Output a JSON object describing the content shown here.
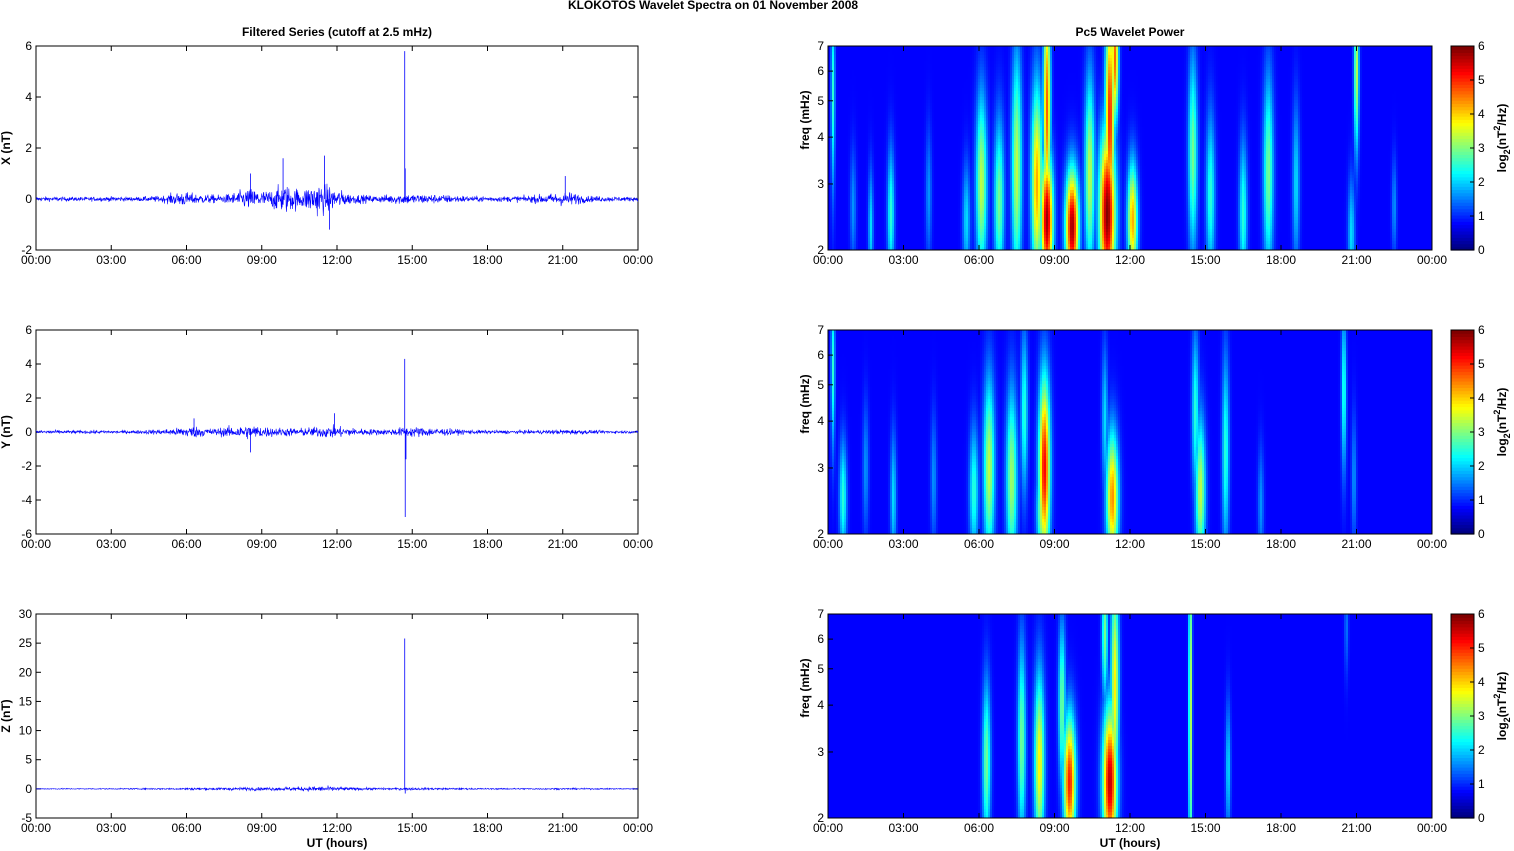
{
  "figure": {
    "title": "KLOKOTOS Wavelet Spectra on 01 November  2008",
    "left_title": "Filtered Series (cutoff at 2.5 mHz)",
    "right_title": "Pc5 Wavelet Power",
    "xlabel": "UT (hours)"
  },
  "chart_data": [
    {
      "type": "line",
      "title": "Filtered Series (cutoff at 2.5 mHz)",
      "xlabel": "",
      "ylabel": "X (nT)",
      "xticks": [
        "00:00",
        "03:00",
        "06:00",
        "09:00",
        "12:00",
        "15:00",
        "18:00",
        "21:00",
        "00:00"
      ],
      "xlim": [
        0,
        24
      ],
      "ylim": [
        -2,
        6
      ],
      "yticks": [
        -2,
        0,
        2,
        4,
        6
      ],
      "color": "#0000ff",
      "activity": [
        [
          0,
          0.09
        ],
        [
          1,
          0.08
        ],
        [
          2,
          0.08
        ],
        [
          3,
          0.09
        ],
        [
          4,
          0.08
        ],
        [
          5,
          0.12
        ],
        [
          5.8,
          0.28
        ],
        [
          6.5,
          0.18
        ],
        [
          7.5,
          0.15
        ],
        [
          8.5,
          0.4
        ],
        [
          9.2,
          0.3
        ],
        [
          9.9,
          0.55
        ],
        [
          10.6,
          0.35
        ],
        [
          11.2,
          0.65
        ],
        [
          11.8,
          0.45
        ],
        [
          12.5,
          0.2
        ],
        [
          13.5,
          0.12
        ],
        [
          14.5,
          0.2
        ],
        [
          15.5,
          0.18
        ],
        [
          16.5,
          0.15
        ],
        [
          17.5,
          0.1
        ],
        [
          18.5,
          0.1
        ],
        [
          19.5,
          0.12
        ],
        [
          20.5,
          0.2
        ],
        [
          21.2,
          0.28
        ],
        [
          22,
          0.12
        ],
        [
          23,
          0.09
        ],
        [
          24,
          0.08
        ]
      ],
      "spikes": [
        {
          "x": 14.7,
          "y": 5.8
        },
        {
          "x": 14.72,
          "y": 1.2
        },
        {
          "x": 9.85,
          "y": 1.6
        },
        {
          "x": 8.55,
          "y": 1.0
        },
        {
          "x": 11.5,
          "y": 1.7
        },
        {
          "x": 11.7,
          "y": -1.2
        },
        {
          "x": 21.1,
          "y": 0.9
        }
      ]
    },
    {
      "type": "line",
      "title": "",
      "xlabel": "",
      "ylabel": "Y (nT)",
      "xticks": [
        "00:00",
        "03:00",
        "06:00",
        "09:00",
        "12:00",
        "15:00",
        "18:00",
        "21:00",
        "00:00"
      ],
      "xlim": [
        0,
        24
      ],
      "ylim": [
        -6,
        6
      ],
      "yticks": [
        -6,
        -4,
        -2,
        0,
        2,
        4,
        6
      ],
      "color": "#0000ff",
      "activity": [
        [
          0,
          0.1
        ],
        [
          2,
          0.09
        ],
        [
          4,
          0.09
        ],
        [
          5.5,
          0.2
        ],
        [
          6.2,
          0.35
        ],
        [
          7,
          0.2
        ],
        [
          8.5,
          0.4
        ],
        [
          9.5,
          0.25
        ],
        [
          10.5,
          0.22
        ],
        [
          11.8,
          0.35
        ],
        [
          12.8,
          0.2
        ],
        [
          14,
          0.15
        ],
        [
          14.8,
          0.3
        ],
        [
          15.8,
          0.25
        ],
        [
          16.8,
          0.15
        ],
        [
          18,
          0.1
        ],
        [
          20,
          0.1
        ],
        [
          21.3,
          0.15
        ],
        [
          22.5,
          0.08
        ],
        [
          24,
          0.07
        ]
      ],
      "spikes": [
        {
          "x": 14.7,
          "y": 4.3
        },
        {
          "x": 14.72,
          "y": -5.0
        },
        {
          "x": 14.75,
          "y": -1.6
        },
        {
          "x": 8.55,
          "y": -1.2
        },
        {
          "x": 11.9,
          "y": 1.1
        },
        {
          "x": 6.3,
          "y": 0.8
        }
      ]
    },
    {
      "type": "line",
      "title": "",
      "xlabel": "UT (hours)",
      "ylabel": "Z (nT)",
      "xticks": [
        "00:00",
        "03:00",
        "06:00",
        "09:00",
        "12:00",
        "15:00",
        "18:00",
        "21:00",
        "00:00"
      ],
      "xlim": [
        0,
        24
      ],
      "ylim": [
        -5,
        30
      ],
      "yticks": [
        -5,
        0,
        5,
        10,
        15,
        20,
        25,
        30
      ],
      "color": "#0000ff",
      "activity": [
        [
          0,
          0.08
        ],
        [
          3,
          0.08
        ],
        [
          5.5,
          0.12
        ],
        [
          6.5,
          0.2
        ],
        [
          8.5,
          0.25
        ],
        [
          10,
          0.3
        ],
        [
          11.5,
          0.45
        ],
        [
          12.5,
          0.25
        ],
        [
          14,
          0.15
        ],
        [
          15,
          0.2
        ],
        [
          16,
          0.15
        ],
        [
          18,
          0.1
        ],
        [
          21,
          0.12
        ],
        [
          24,
          0.08
        ]
      ],
      "spikes": [
        {
          "x": 14.7,
          "y": 25.8
        },
        {
          "x": 14.72,
          "y": -0.8
        }
      ]
    },
    {
      "type": "heatmap",
      "title": "Pc5 Wavelet Power",
      "xlabel": "",
      "ylabel": "freq (mHz)",
      "xticks": [
        "00:00",
        "03:00",
        "06:00",
        "09:00",
        "12:00",
        "15:00",
        "18:00",
        "21:00",
        "00:00"
      ],
      "xlim": [
        0,
        24
      ],
      "ylim": [
        2,
        7
      ],
      "yscale": "log",
      "yticks": [
        2,
        3,
        4,
        5,
        6,
        7
      ],
      "colorbar": {
        "label": "log2(nT2/Hz)",
        "ticks": [
          0,
          1,
          2,
          3,
          4,
          5,
          6
        ],
        "range": [
          0,
          6
        ],
        "colormap": "jet"
      },
      "blobs": [
        {
          "t": 0.2,
          "f": 5.2,
          "p": 2.0,
          "w": 0.08,
          "h": 0.6
        },
        {
          "t": 1.0,
          "f": 2.6,
          "p": 1.0,
          "w": 0.12,
          "h": 0.35
        },
        {
          "t": 1.7,
          "f": 2.3,
          "p": 1.5,
          "w": 0.1,
          "h": 0.35
        },
        {
          "t": 2.5,
          "f": 2.5,
          "p": 2.0,
          "w": 0.14,
          "h": 0.4
        },
        {
          "t": 4.0,
          "f": 2.8,
          "p": 1.0,
          "w": 0.12,
          "h": 0.4
        },
        {
          "t": 5.5,
          "f": 2.4,
          "p": 1.5,
          "w": 0.15,
          "h": 0.35
        },
        {
          "t": 6.1,
          "f": 3.0,
          "p": 3.0,
          "w": 0.22,
          "h": 0.55
        },
        {
          "t": 6.8,
          "f": 2.7,
          "p": 2.5,
          "w": 0.2,
          "h": 0.5
        },
        {
          "t": 7.5,
          "f": 3.3,
          "p": 3.0,
          "w": 0.2,
          "h": 0.7
        },
        {
          "t": 8.3,
          "f": 3.0,
          "p": 4.0,
          "w": 0.22,
          "h": 0.6
        },
        {
          "t": 8.7,
          "f": 2.4,
          "p": 5.8,
          "w": 0.24,
          "h": 0.4
        },
        {
          "t": 8.7,
          "f": 4.8,
          "p": 4.5,
          "w": 0.14,
          "h": 0.7
        },
        {
          "t": 9.7,
          "f": 2.3,
          "p": 5.8,
          "w": 0.26,
          "h": 0.35
        },
        {
          "t": 10.4,
          "f": 3.2,
          "p": 3.0,
          "w": 0.2,
          "h": 0.6
        },
        {
          "t": 11.1,
          "f": 2.5,
          "p": 6.0,
          "w": 0.32,
          "h": 0.5
        },
        {
          "t": 11.2,
          "f": 4.5,
          "p": 5.0,
          "w": 0.18,
          "h": 0.7
        },
        {
          "t": 11.4,
          "f": 6.5,
          "p": 4.5,
          "w": 0.14,
          "h": 0.4
        },
        {
          "t": 12.1,
          "f": 2.4,
          "p": 4.0,
          "w": 0.2,
          "h": 0.35
        },
        {
          "t": 14.5,
          "f": 3.6,
          "p": 2.5,
          "w": 0.18,
          "h": 0.6
        },
        {
          "t": 15.2,
          "f": 2.8,
          "p": 2.0,
          "w": 0.18,
          "h": 0.5
        },
        {
          "t": 16.5,
          "f": 2.5,
          "p": 2.0,
          "w": 0.16,
          "h": 0.45
        },
        {
          "t": 17.5,
          "f": 3.2,
          "p": 2.5,
          "w": 0.2,
          "h": 0.6
        },
        {
          "t": 18.6,
          "f": 3.0,
          "p": 1.5,
          "w": 0.14,
          "h": 0.5
        },
        {
          "t": 20.8,
          "f": 2.2,
          "p": 1.5,
          "w": 0.14,
          "h": 0.35
        },
        {
          "t": 21.0,
          "f": 6.0,
          "p": 3.0,
          "w": 0.1,
          "h": 0.5
        },
        {
          "t": 22.5,
          "f": 2.6,
          "p": 1.0,
          "w": 0.1,
          "h": 0.3
        }
      ]
    },
    {
      "type": "heatmap",
      "title": "",
      "xlabel": "",
      "ylabel": "freq (mHz)",
      "xticks": [
        "00:00",
        "03:00",
        "06:00",
        "09:00",
        "12:00",
        "15:00",
        "18:00",
        "21:00",
        "00:00"
      ],
      "xlim": [
        0,
        24
      ],
      "ylim": [
        2,
        7
      ],
      "yscale": "log",
      "yticks": [
        2,
        3,
        4,
        5,
        6,
        7
      ],
      "colorbar": {
        "label": "log2(nT2/Hz)",
        "ticks": [
          0,
          1,
          2,
          3,
          4,
          5,
          6
        ],
        "range": [
          0,
          6
        ],
        "colormap": "jet"
      },
      "blobs": [
        {
          "t": 0.2,
          "f": 5.5,
          "p": 2.0,
          "w": 0.08,
          "h": 0.5
        },
        {
          "t": 0.6,
          "f": 2.5,
          "p": 2.0,
          "w": 0.15,
          "h": 0.35
        },
        {
          "t": 1.5,
          "f": 3.0,
          "p": 1.0,
          "w": 0.12,
          "h": 0.4
        },
        {
          "t": 2.6,
          "f": 2.5,
          "p": 1.5,
          "w": 0.12,
          "h": 0.4
        },
        {
          "t": 4.2,
          "f": 2.8,
          "p": 1.0,
          "w": 0.12,
          "h": 0.4
        },
        {
          "t": 5.8,
          "f": 2.6,
          "p": 2.0,
          "w": 0.18,
          "h": 0.4
        },
        {
          "t": 6.4,
          "f": 3.0,
          "p": 3.0,
          "w": 0.22,
          "h": 0.55
        },
        {
          "t": 7.3,
          "f": 2.8,
          "p": 2.8,
          "w": 0.22,
          "h": 0.55
        },
        {
          "t": 7.8,
          "f": 4.2,
          "p": 2.0,
          "w": 0.14,
          "h": 0.5
        },
        {
          "t": 8.6,
          "f": 3.0,
          "p": 5.2,
          "w": 0.22,
          "h": 0.55
        },
        {
          "t": 8.5,
          "f": 2.3,
          "p": 3.0,
          "w": 0.2,
          "h": 0.3
        },
        {
          "t": 11.3,
          "f": 2.5,
          "p": 4.2,
          "w": 0.24,
          "h": 0.4
        },
        {
          "t": 11.0,
          "f": 4.0,
          "p": 1.5,
          "w": 0.12,
          "h": 0.45
        },
        {
          "t": 14.8,
          "f": 2.6,
          "p": 3.0,
          "w": 0.2,
          "h": 0.45
        },
        {
          "t": 14.6,
          "f": 4.2,
          "p": 2.0,
          "w": 0.14,
          "h": 0.5
        },
        {
          "t": 15.8,
          "f": 3.3,
          "p": 2.0,
          "w": 0.14,
          "h": 0.6
        },
        {
          "t": 17.2,
          "f": 2.4,
          "p": 1.0,
          "w": 0.12,
          "h": 0.35
        },
        {
          "t": 20.5,
          "f": 4.8,
          "p": 2.0,
          "w": 0.1,
          "h": 0.5
        },
        {
          "t": 20.9,
          "f": 2.8,
          "p": 1.0,
          "w": 0.1,
          "h": 0.4
        }
      ]
    },
    {
      "type": "heatmap",
      "title": "",
      "xlabel": "UT (hours)",
      "ylabel": "freq (mHz)",
      "xticks": [
        "00:00",
        "03:00",
        "06:00",
        "09:00",
        "12:00",
        "15:00",
        "18:00",
        "21:00",
        "00:00"
      ],
      "xlim": [
        0,
        24
      ],
      "ylim": [
        2,
        7
      ],
      "yscale": "log",
      "yticks": [
        2,
        3,
        4,
        5,
        6,
        7
      ],
      "colorbar": {
        "label": "log2(nT2/Hz)",
        "ticks": [
          0,
          1,
          2,
          3,
          4,
          5,
          6
        ],
        "range": [
          0,
          6
        ],
        "colormap": "jet"
      },
      "blobs": [
        {
          "t": 6.3,
          "f": 2.8,
          "p": 2.5,
          "w": 0.16,
          "h": 0.5
        },
        {
          "t": 7.7,
          "f": 3.2,
          "p": 2.5,
          "w": 0.16,
          "h": 0.6
        },
        {
          "t": 8.4,
          "f": 2.8,
          "p": 3.5,
          "w": 0.2,
          "h": 0.55
        },
        {
          "t": 9.6,
          "f": 2.5,
          "p": 5.0,
          "w": 0.24,
          "h": 0.4
        },
        {
          "t": 9.3,
          "f": 4.0,
          "p": 2.5,
          "w": 0.14,
          "h": 0.5
        },
        {
          "t": 11.2,
          "f": 2.5,
          "p": 5.6,
          "w": 0.28,
          "h": 0.45
        },
        {
          "t": 11.4,
          "f": 4.5,
          "p": 3.5,
          "w": 0.16,
          "h": 0.7
        },
        {
          "t": 11.0,
          "f": 6.2,
          "p": 2.5,
          "w": 0.12,
          "h": 0.4
        },
        {
          "t": 14.4,
          "f": 4.0,
          "p": 3.2,
          "w": 0.07,
          "h": 1.2
        },
        {
          "t": 15.9,
          "f": 2.7,
          "p": 1.5,
          "w": 0.1,
          "h": 0.4
        },
        {
          "t": 20.6,
          "f": 6.5,
          "p": 0.8,
          "w": 0.08,
          "h": 0.3
        }
      ]
    }
  ]
}
